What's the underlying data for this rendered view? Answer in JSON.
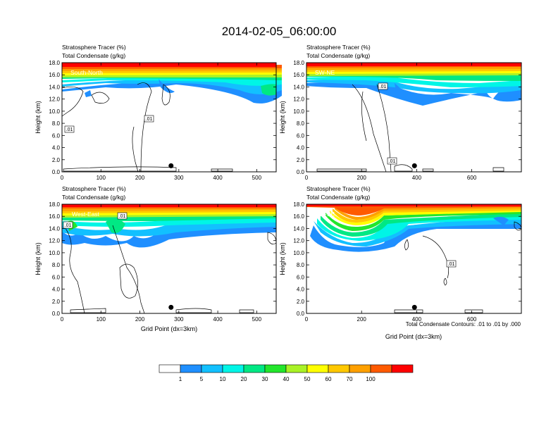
{
  "title": "2014-02-05_06:00:00",
  "legend": {
    "colors": [
      "#ffffff",
      "#1f8fff",
      "#12c0ff",
      "#00f5e6",
      "#00e884",
      "#23e62c",
      "#a9f226",
      "#ffff00",
      "#ffc800",
      "#ffa000",
      "#ff5a00",
      "#ff0000"
    ],
    "labels": [
      "1",
      "5",
      "10",
      "20",
      "30",
      "40",
      "50",
      "60",
      "70",
      "100"
    ]
  },
  "footnote": "Total Condensate Contours: .01 to .01 by .000",
  "chart_data": [
    {
      "type": "contour",
      "name": "South-North",
      "subtitle1": "Stratosphere Tracer   (%)",
      "subtitle2": "Total Condensate   (g/kg)",
      "ylabel": "Height (km)",
      "xlabel": "",
      "xlim": [
        0,
        550
      ],
      "ylim": [
        0,
        18
      ],
      "xticks": [
        "0",
        "100",
        "200",
        "300",
        "400",
        "500"
      ],
      "yticks": [
        "0.0",
        "2.0",
        "4.0",
        "6.0",
        "8.0",
        "10.0",
        "12.0",
        "14.0",
        "16.0",
        "18.0"
      ],
      "marker": {
        "x": 280,
        "y": 1.0
      },
      "contour_labels": [
        ".01",
        ".01"
      ]
    },
    {
      "type": "contour",
      "name": "SW-NE",
      "subtitle1": "Stratosphere Tracer   (%)",
      "subtitle2": "Total Condensate   (g/kg)",
      "ylabel": "Height (km)",
      "xlabel": "",
      "xlim": [
        0,
        780
      ],
      "ylim": [
        0,
        18
      ],
      "xticks": [
        "0",
        "200",
        "400",
        "600"
      ],
      "yticks": [
        "0.0",
        "2.0",
        "4.0",
        "6.0",
        "8.0",
        "10.0",
        "12.0",
        "14.0",
        "16.0",
        "18.0"
      ],
      "marker": {
        "x": 392,
        "y": 1.0
      },
      "contour_labels": [
        ".01",
        ".01"
      ]
    },
    {
      "type": "contour",
      "name": "West-East",
      "subtitle1": "Stratosphere Tracer   (%)",
      "subtitle2": "Total Condensate   (g/kg)",
      "ylabel": "Height (km)",
      "xlabel": "Grid Point (dx=3km)",
      "xlim": [
        0,
        550
      ],
      "ylim": [
        0,
        18
      ],
      "xticks": [
        "0",
        "100",
        "200",
        "300",
        "400",
        "500"
      ],
      "yticks": [
        "0.0",
        "2.0",
        "4.0",
        "6.0",
        "8.0",
        "10.0",
        "12.0",
        "14.0",
        "16.0",
        "18.0"
      ],
      "marker": {
        "x": 280,
        "y": 1.0
      },
      "contour_labels": [
        ".01",
        ".01"
      ]
    },
    {
      "type": "contour",
      "name": "NW-SE",
      "subtitle1": "Stratosphere Tracer   (%)",
      "subtitle2": "Total Condensate   (g/kg)",
      "ylabel": "Height (km)",
      "xlabel": "Grid Point (dx=3km)",
      "xlim": [
        0,
        780
      ],
      "ylim": [
        0,
        18
      ],
      "xticks": [
        "0",
        "200",
        "400",
        "600"
      ],
      "yticks": [
        "0.0",
        "2.0",
        "4.0",
        "6.0",
        "8.0",
        "10.0",
        "12.0",
        "14.0",
        "16.0",
        "18.0"
      ],
      "marker": {
        "x": 392,
        "y": 1.0
      },
      "contour_labels": [
        ".01"
      ]
    }
  ]
}
